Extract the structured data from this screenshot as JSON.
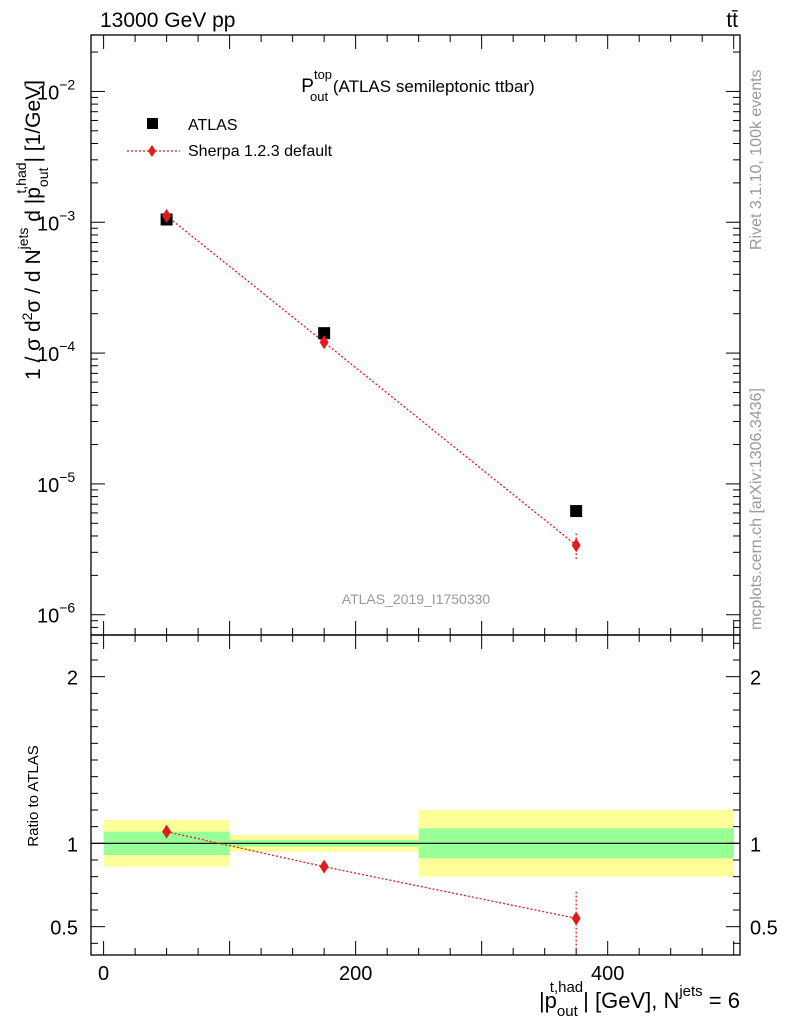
{
  "header": {
    "left": "13000 GeV pp",
    "right": "tt̄"
  },
  "side_labels": {
    "rivet": "Rivet 3.1.10,  100k events",
    "mcplots": "mcplots.cern.ch [arXiv:1306.3436]"
  },
  "watermark": "ATLAS_2019_I1750330",
  "chart_data": [
    {
      "type": "scatter",
      "scale_y": "log",
      "title": {
        "main": "P",
        "sup": "top",
        "sub": "out",
        "rest": " (ATLAS semileptonic ttbar)"
      },
      "ylabel": {
        "p1": "1 / σ d",
        "sup1": "2",
        "p2": "σ / d N",
        "sup2": "jets",
        "p3": " d |p",
        "sub3": "out",
        "sup3": "t,had",
        "p4": "| [1/GeV]"
      },
      "xlim": [
        -10,
        505
      ],
      "ylim": [
        7e-07,
        0.027
      ],
      "y_ticks": [
        {
          "value": 1e-06,
          "base": "10",
          "exp": "−6"
        },
        {
          "value": 1e-05,
          "base": "10",
          "exp": "−5"
        },
        {
          "value": 0.0001,
          "base": "10",
          "exp": "−4"
        },
        {
          "value": 0.001,
          "base": "10",
          "exp": "−3"
        },
        {
          "value": 0.01,
          "base": "10",
          "exp": "−2"
        }
      ],
      "legend_position": "top-left",
      "series": [
        {
          "name": "ATLAS",
          "color": "#000000",
          "marker": "square",
          "x": [
            50,
            175,
            375
          ],
          "y": [
            0.00105,
            0.000142,
            6.2e-06
          ],
          "bins": [
            [
              0,
              100
            ],
            [
              100,
              250
            ],
            [
              250,
              500
            ]
          ]
        },
        {
          "name": "Sherpa 1.2.3 default",
          "color": "#e31a1c",
          "marker": "diamond",
          "line": "dotted",
          "x": [
            50,
            175,
            375
          ],
          "y": [
            0.00112,
            0.000121,
            3.4e-06
          ],
          "yerr_low": [
            3e-05,
            8e-06,
            8e-07
          ],
          "yerr_high": [
            3e-05,
            8e-06,
            8e-07
          ]
        }
      ]
    },
    {
      "type": "line",
      "ylabel": "Ratio to ATLAS",
      "xlabel": {
        "p1": "|p",
        "sub": "out",
        "sup": "t,had",
        "p2": "| [GeV], N",
        "sup2": "jets",
        "p3": " = 6"
      },
      "xlim": [
        -10,
        505
      ],
      "ylim": [
        0.33,
        2.25
      ],
      "x_ticks": [
        0,
        200,
        400
      ],
      "y_ticks": [
        0.5,
        1,
        2
      ],
      "reference_line": 1,
      "bands": [
        {
          "x": [
            0,
            100
          ],
          "inner": [
            0.93,
            1.07
          ],
          "outer": [
            0.86,
            1.14
          ],
          "inner_color": "#99ff99",
          "outer_color": "#ffff99"
        },
        {
          "x": [
            100,
            250
          ],
          "inner": [
            0.98,
            1.02
          ],
          "outer": [
            0.95,
            1.05
          ],
          "inner_color": "#99ff99",
          "outer_color": "#ffff99"
        },
        {
          "x": [
            250,
            500
          ],
          "inner": [
            0.91,
            1.09
          ],
          "outer": [
            0.8,
            1.2
          ],
          "inner_color": "#99ff99",
          "outer_color": "#ffff99"
        }
      ],
      "series": [
        {
          "name": "Sherpa 1.2.3 default",
          "color": "#e31a1c",
          "x": [
            50,
            175,
            375
          ],
          "y": [
            1.07,
            0.86,
            0.55
          ],
          "yerr_low": [
            0.015,
            0.035,
            0.19
          ],
          "yerr_high": [
            0.015,
            0.035,
            0.16
          ]
        }
      ]
    }
  ]
}
